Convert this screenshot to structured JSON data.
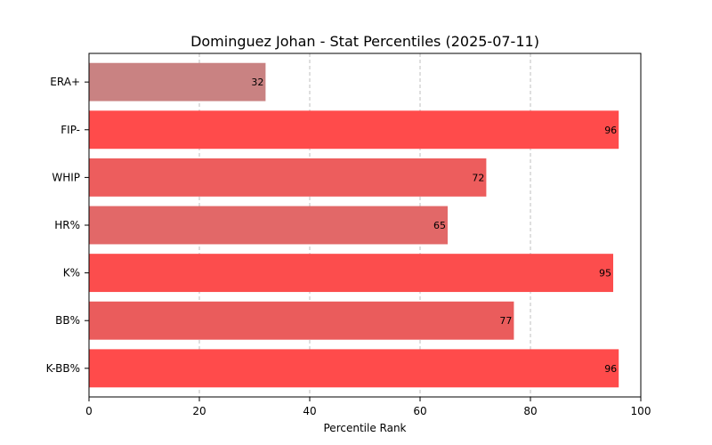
{
  "chart_data": {
    "type": "bar",
    "orientation": "horizontal",
    "title": "Dominguez Johan - Stat Percentiles (2025-07-11)",
    "xlabel": "Percentile Rank",
    "ylabel": "",
    "xlim": [
      0,
      100
    ],
    "xticks": [
      0,
      20,
      40,
      60,
      80,
      100
    ],
    "grid": "x-dashed",
    "categories": [
      "ERA+",
      "FIP-",
      "WHIP",
      "HR%",
      "K%",
      "BB%",
      "K-BB%"
    ],
    "values": [
      32,
      96,
      72,
      65,
      95,
      77,
      96
    ],
    "colors": [
      "#c98282",
      "#ff4b4b",
      "#ed5d5d",
      "#e26868",
      "#fc4d4d",
      "#ea5c5c",
      "#ff4b4b"
    ]
  }
}
